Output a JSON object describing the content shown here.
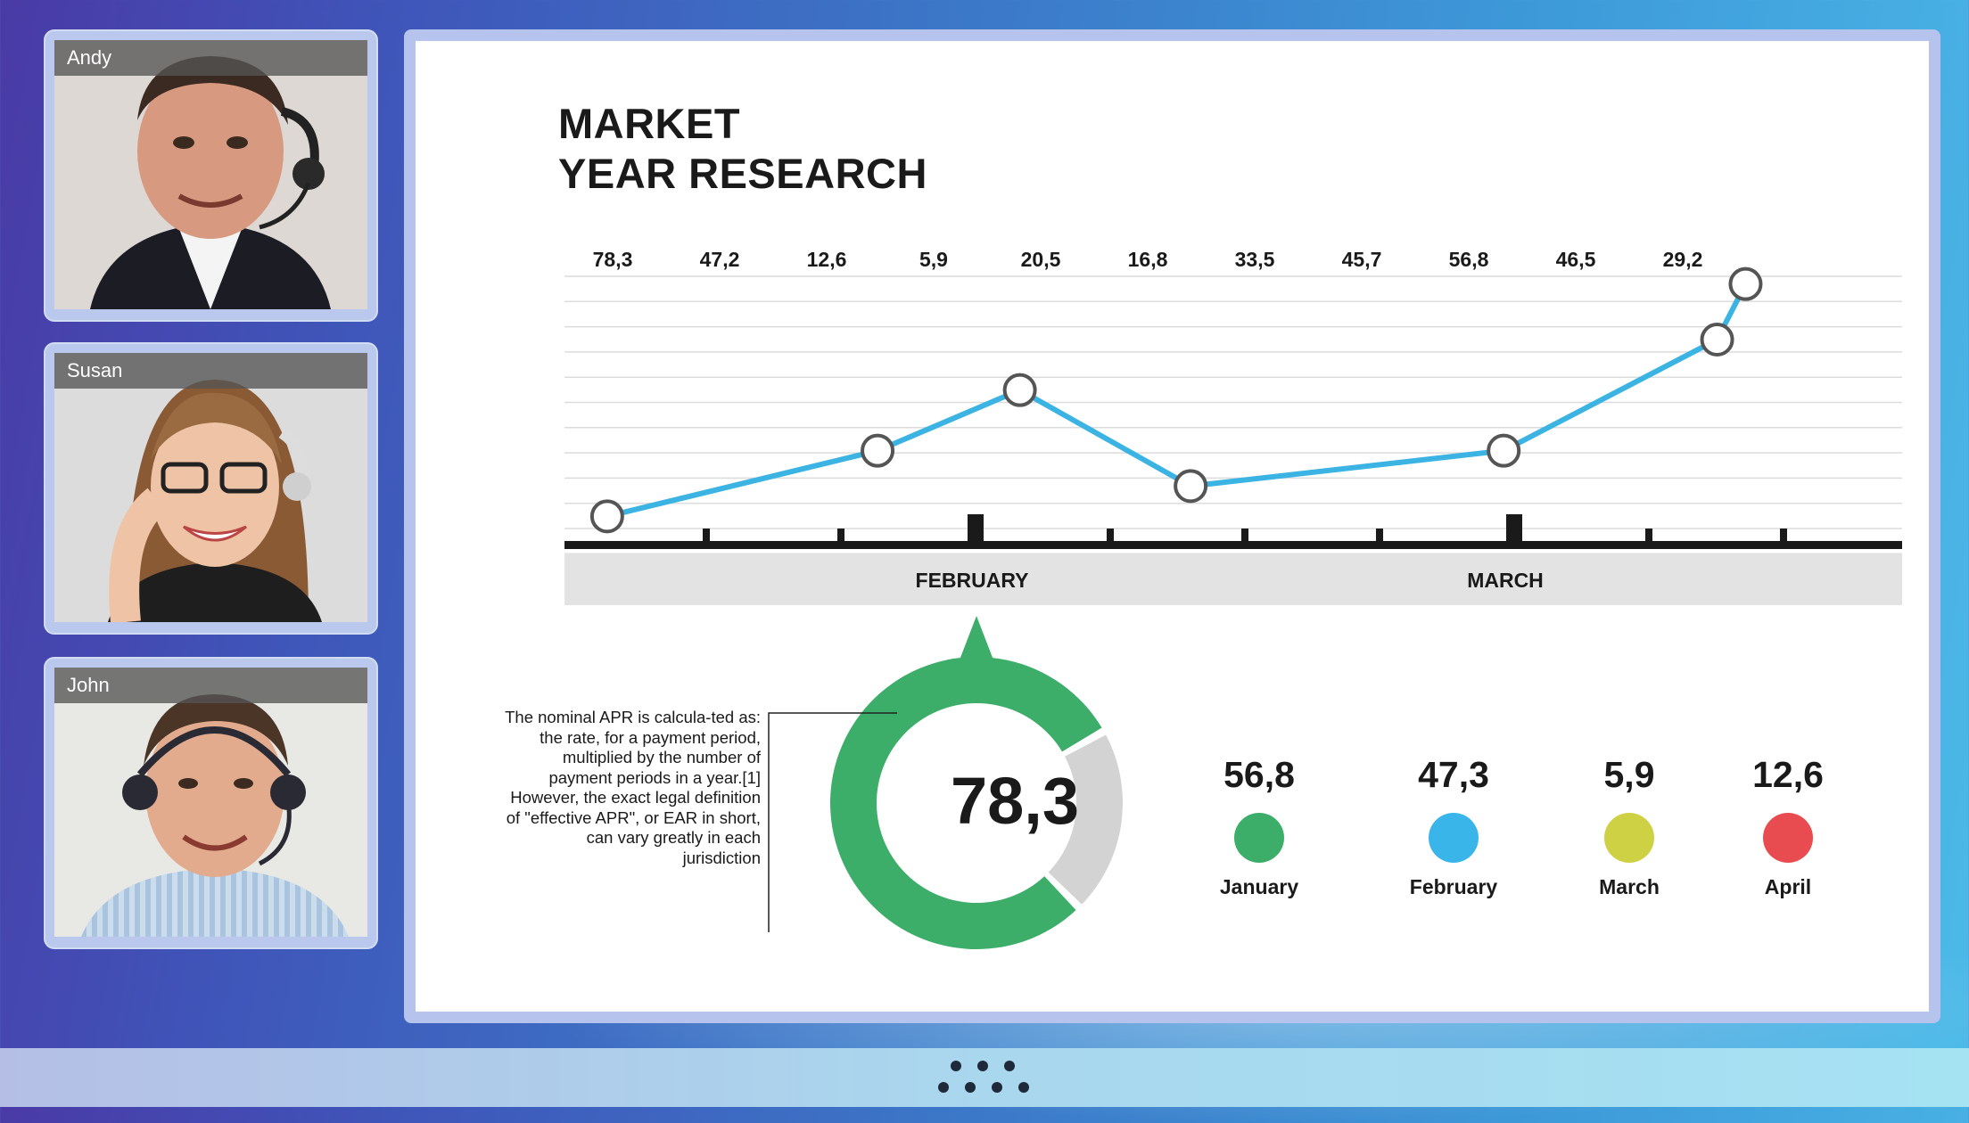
{
  "participants": [
    {
      "name": "Andy"
    },
    {
      "name": "Susan"
    },
    {
      "name": "John"
    }
  ],
  "board": {
    "title_line1": "MARKET",
    "title_line2": "YEAR RESEARCH",
    "note": "The nominal APR is calcula-ted as: the rate, for a payment period, multiplied by the number of payment periods in a year.[1] However, the exact legal definition of \"effective APR\", or EAR in short, can vary greatly in each jurisdiction",
    "donut_value": "78,3",
    "legend": [
      {
        "value": "56,8",
        "label": "January",
        "color": "#3dae6a"
      },
      {
        "value": "47,3",
        "label": "February",
        "color": "#39b5ea"
      },
      {
        "value": "5,9",
        "label": "March",
        "color": "#cfd144"
      },
      {
        "value": "12,6",
        "label": "April",
        "color": "#e84b50"
      }
    ]
  },
  "colors": {
    "line": "#3bb3e3",
    "donut_green": "#3dae6a",
    "donut_gray": "#d3d3d3",
    "axis": "#1a1a1a",
    "band": "#e3e3e3"
  },
  "chart_data": [
    {
      "type": "line",
      "title": "MARKET YEAR RESEARCH",
      "top_labels": [
        "78,3",
        "47,2",
        "12,6",
        "5,9",
        "20,5",
        "16,8",
        "33,5",
        "45,7",
        "56,8",
        "46,5",
        "29,2"
      ],
      "month_labels": [
        "FEBRUARY",
        "MARCH"
      ],
      "series": [
        {
          "points": [
            [
              0.3,
              10
            ],
            [
              2.2,
              23
            ],
            [
              3.2,
              35
            ],
            [
              4.4,
              16
            ],
            [
              6.6,
              23
            ],
            [
              8.1,
              45
            ],
            [
              8.3,
              56
            ]
          ]
        }
      ],
      "x_range": [
        0,
        9.4
      ],
      "ylim": [
        0,
        60
      ],
      "grid": true
    },
    {
      "type": "pie",
      "center_label": "78,3",
      "values": [
        78.3,
        21.7
      ]
    }
  ]
}
